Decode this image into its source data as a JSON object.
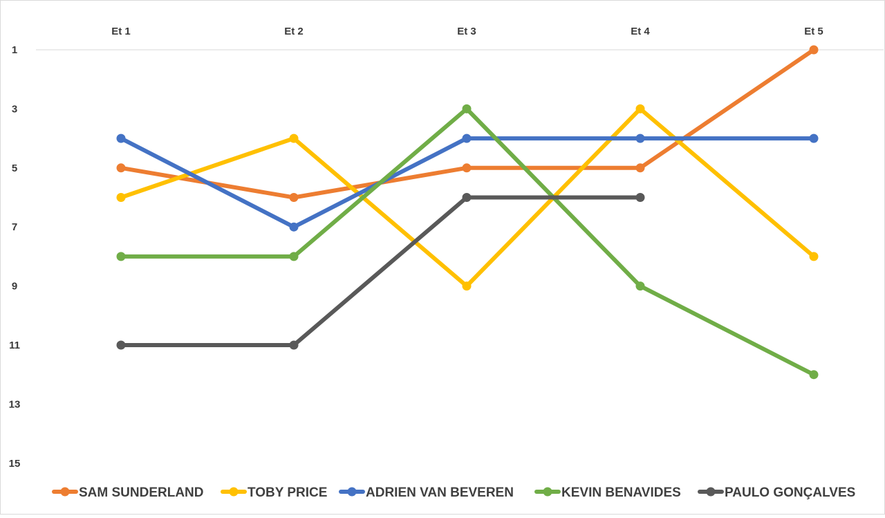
{
  "chart_data": {
    "type": "line",
    "categories": [
      "Et 1",
      "Et 2",
      "Et 3",
      "Et 4",
      "Et 5"
    ],
    "y_axis": {
      "reversed": true,
      "ylim": [
        1,
        15
      ],
      "ticks": [
        1,
        3,
        5,
        7,
        9,
        11,
        13,
        15
      ]
    },
    "grid": false,
    "legend_position": "bottom",
    "series": [
      {
        "name": "SAM SUNDERLAND",
        "color": "#ED7D31",
        "values": [
          5,
          6,
          5,
          5,
          1
        ]
      },
      {
        "name": "TOBY PRICE",
        "color": "#FFC000",
        "values": [
          6,
          4,
          9,
          3,
          8
        ]
      },
      {
        "name": "ADRIEN VAN BEVEREN",
        "color": "#4472C4",
        "values": [
          4,
          7,
          4,
          4,
          4
        ]
      },
      {
        "name": "KEVIN BENAVIDES",
        "color": "#70AD47",
        "values": [
          8,
          8,
          3,
          9,
          12
        ]
      },
      {
        "name": "PAULO GONÇALVES",
        "color": "#595959",
        "values": [
          11,
          11,
          6,
          6,
          null
        ]
      }
    ]
  }
}
